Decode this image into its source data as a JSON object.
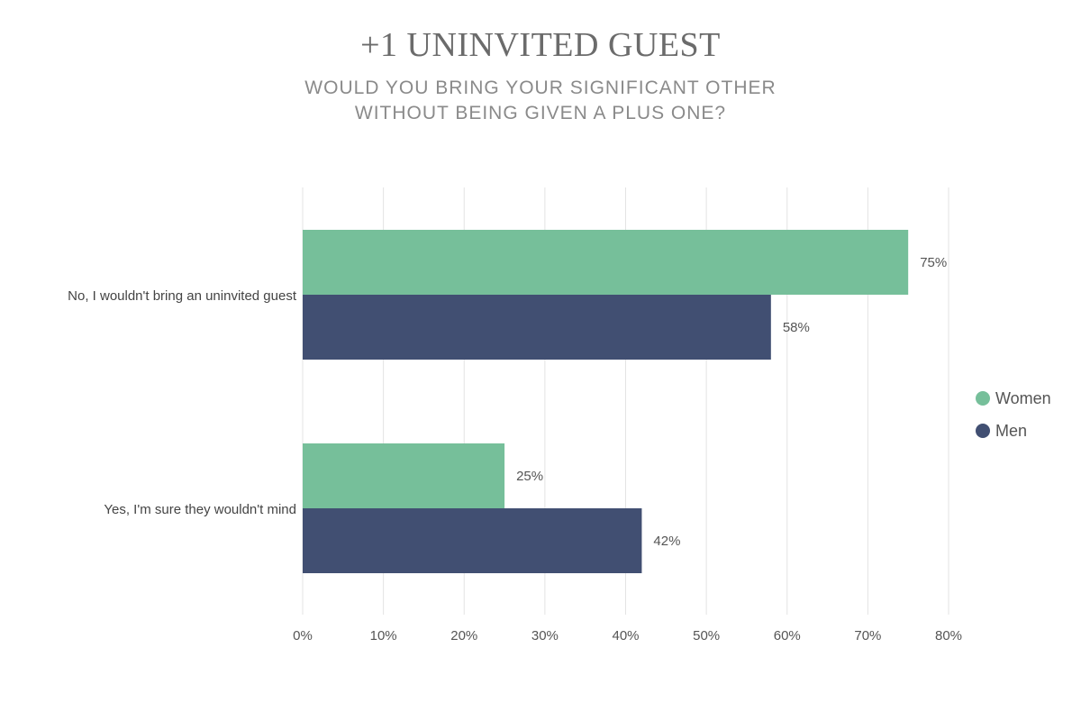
{
  "chart_data": {
    "type": "bar",
    "orientation": "horizontal",
    "title": "+1 UNINVITED GUEST",
    "subtitle_lines": [
      "WOULD YOU BRING YOUR SIGNIFICANT OTHER",
      "WITHOUT BEING GIVEN A PLUS ONE?"
    ],
    "categories": [
      "No, I wouldn't bring an uninvited guest",
      "Yes, I'm sure they wouldn't mind"
    ],
    "series": [
      {
        "name": "Women",
        "values": [
          75,
          25
        ],
        "value_labels": [
          "75%",
          "25%"
        ],
        "color": "#76bf9a"
      },
      {
        "name": "Men",
        "values": [
          58,
          42
        ],
        "value_labels": [
          "58%",
          "42%"
        ],
        "color": "#414f72"
      }
    ],
    "x_ticks": [
      0,
      10,
      20,
      30,
      40,
      50,
      60,
      70,
      80
    ],
    "x_tick_labels": [
      "0%",
      "10%",
      "20%",
      "30%",
      "40%",
      "50%",
      "60%",
      "70%",
      "80%"
    ],
    "xlim": [
      0,
      80
    ],
    "grid": "vertical",
    "legend_position": "right"
  }
}
